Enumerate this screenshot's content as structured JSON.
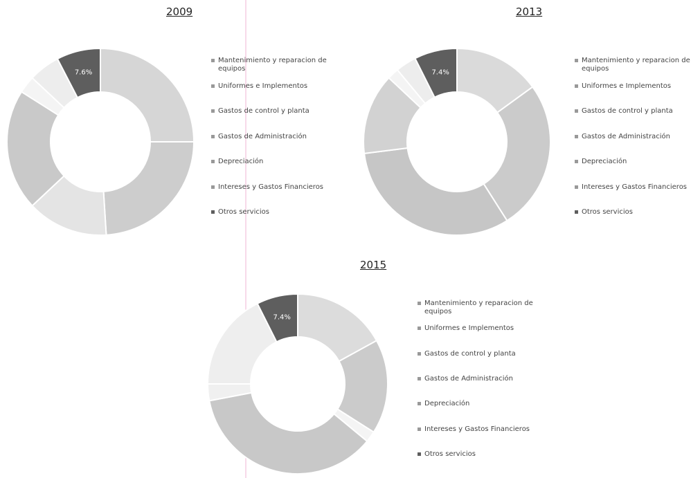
{
  "chart_data": [
    {
      "type": "donut",
      "title": "2009",
      "categories": [
        "Mantenimiento y reparacion de equipos",
        "Uniformes e Implementos",
        "Gastos de control y planta",
        "Gastos de Administración",
        "Depreciación",
        "Intereses y Gastos Financieros",
        "Otros servicios"
      ],
      "values": [
        25,
        24,
        14,
        21,
        3,
        5.4,
        7.6
      ],
      "value_labels": [
        null,
        null,
        null,
        null,
        null,
        null,
        "7.6%"
      ],
      "colors": [
        "#d6d6d6",
        "#cdcdcd",
        "#e4e4e4",
        "#c9c9c9",
        "#f4f4f4",
        "#ededed",
        "#5e5e5e"
      ]
    },
    {
      "type": "donut",
      "title": "2013",
      "categories": [
        "Mantenimiento y reparacion de equipos",
        "Uniformes e Implementos",
        "Gastos de control y planta",
        "Gastos de Administración",
        "Depreciación",
        "Intereses y Gastos Financieros",
        "Otros servicios"
      ],
      "values": [
        15,
        26,
        32,
        14,
        2,
        3.6,
        7.4
      ],
      "value_labels": [
        null,
        null,
        null,
        null,
        null,
        null,
        "7.4%"
      ],
      "colors": [
        "#dadada",
        "#cbcbcb",
        "#c6c6c6",
        "#d2d2d2",
        "#f4f4f4",
        "#ededed",
        "#5e5e5e"
      ]
    },
    {
      "type": "donut",
      "title": "2015",
      "categories": [
        "Mantenimiento y reparacion de equipos",
        "Uniformes e Implementos",
        "Gastos de control y planta",
        "Gastos de Administración",
        "Depreciación",
        "Intereses y Gastos Financieros",
        "Otros servicios"
      ],
      "values": [
        17,
        17,
        2,
        36,
        3,
        17.6,
        7.4
      ],
      "value_labels": [
        null,
        null,
        null,
        null,
        null,
        null,
        "7.4%"
      ],
      "colors": [
        "#dcdcdc",
        "#cbcbcb",
        "#f4f4f4",
        "#c8c8c8",
        "#f0f0f0",
        "#eeeeee",
        "#5e5e5e"
      ]
    }
  ]
}
